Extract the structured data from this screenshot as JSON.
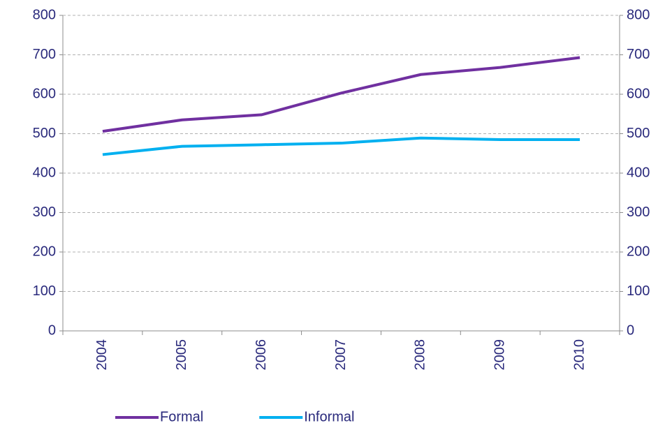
{
  "chart_data": {
    "type": "line",
    "categories": [
      "2004",
      "2005",
      "2006",
      "2007",
      "2008",
      "2009",
      "2010"
    ],
    "series": [
      {
        "name": "Formal",
        "color": "#7030a0",
        "values": [
          506,
          535,
          548,
          603,
          650,
          668,
          693
        ]
      },
      {
        "name": "Informal",
        "color": "#00b0f0",
        "values": [
          447,
          468,
          472,
          476,
          489,
          485,
          485
        ]
      }
    ],
    "ylim": [
      0,
      800
    ],
    "yticks": [
      0,
      100,
      200,
      300,
      400,
      500,
      600,
      700,
      800
    ],
    "y2lim": [
      0,
      800
    ],
    "y2ticks": [
      0,
      100,
      200,
      300,
      400,
      500,
      600,
      700,
      800
    ],
    "grid": true,
    "legend": "bottom"
  }
}
